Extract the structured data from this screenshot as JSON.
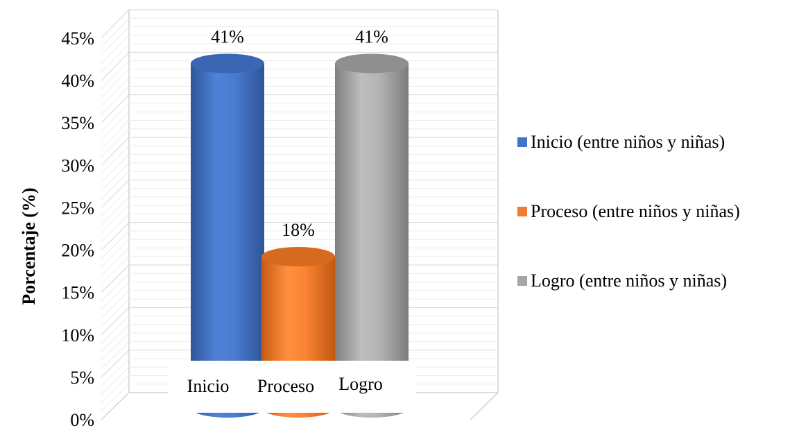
{
  "chart_data": {
    "type": "bar",
    "style": "3d-cylinder",
    "categories": [
      "Inicio",
      "Proceso",
      "Logro"
    ],
    "values": [
      41,
      18,
      41
    ],
    "data_labels": [
      "41%",
      "18%",
      "41%"
    ],
    "series_names": [
      "Inicio (entre niños y niñas)",
      "Proceso (entre niños y niñas)",
      "Logro (entre niños y niñas)"
    ],
    "colors": [
      "#4472c4",
      "#ed7d31",
      "#a5a5a5"
    ],
    "xlabel": "",
    "ylabel": "Porcentaje (%)",
    "ylim": [
      0,
      45
    ],
    "yticks": [
      "0%",
      "5%",
      "10%",
      "15%",
      "20%",
      "25%",
      "30%",
      "35%",
      "40%",
      "45%"
    ],
    "ytick_values": [
      0,
      5,
      10,
      15,
      20,
      25,
      30,
      35,
      40,
      45
    ],
    "grid": true,
    "legend_position": "right"
  }
}
